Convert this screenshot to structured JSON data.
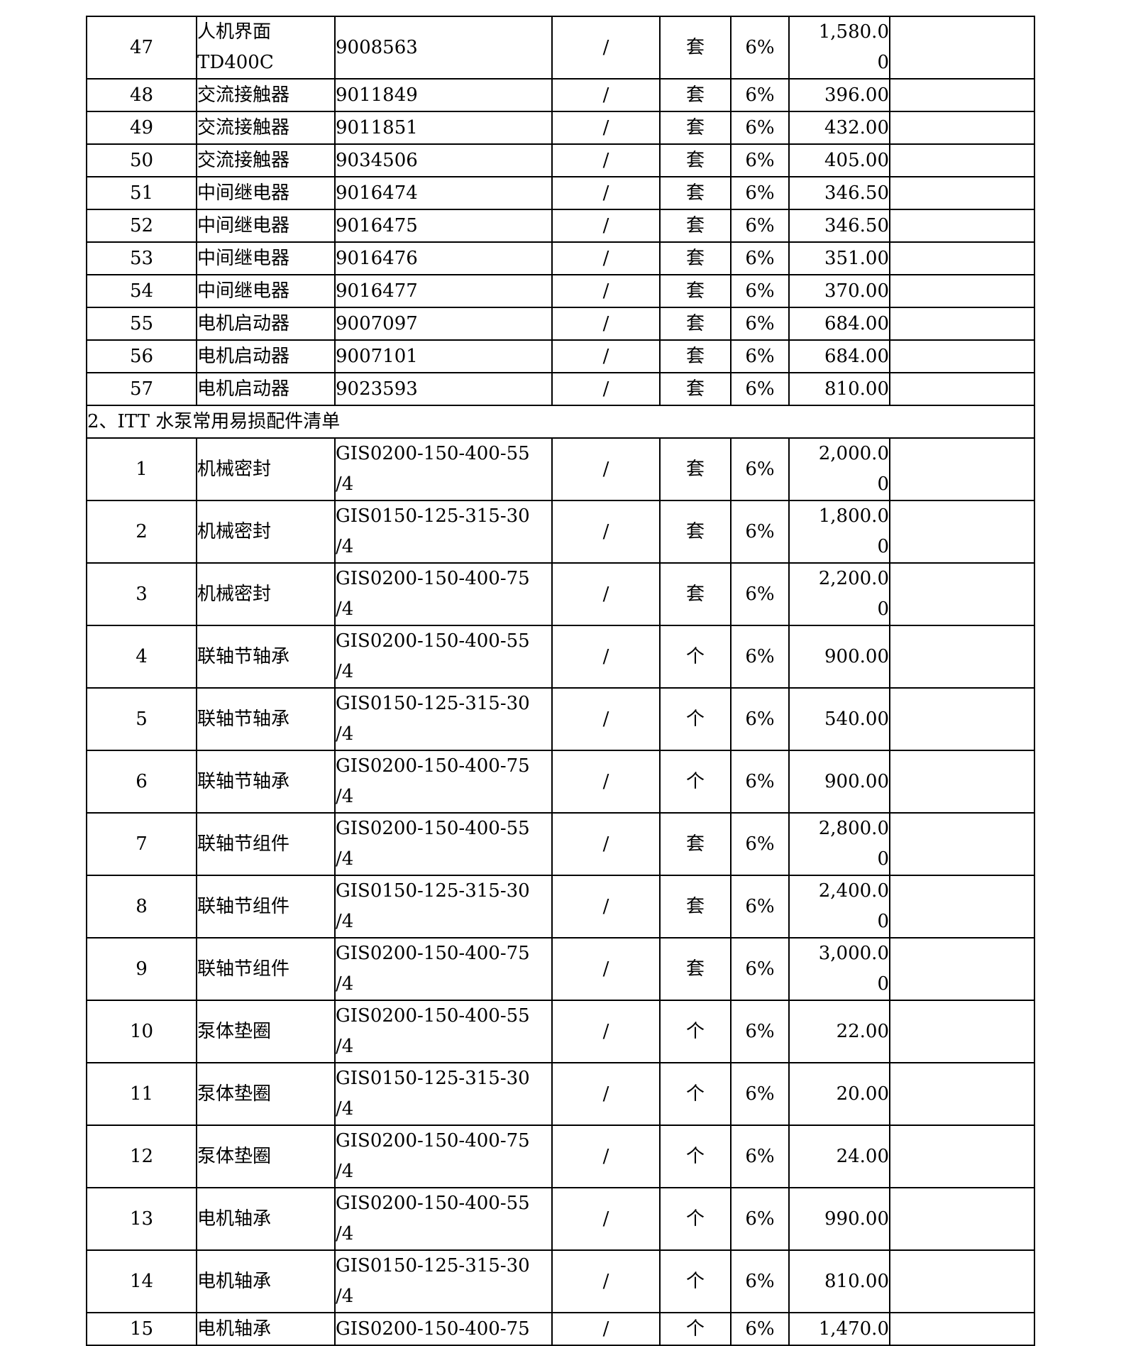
{
  "table": {
    "section2_title": "2、ITT 水泵常用易损配件清单",
    "columns": [
      "no",
      "name",
      "model",
      "qty",
      "unit",
      "tax",
      "price",
      "note"
    ],
    "rows_section1": [
      {
        "no": "47",
        "name": "人机界面\nTD400C",
        "model": "9008563",
        "qty": "/",
        "unit": "套",
        "tax": "6%",
        "price": "1,580.0\n0",
        "note": ""
      },
      {
        "no": "48",
        "name": "交流接触器",
        "model": "9011849",
        "qty": "/",
        "unit": "套",
        "tax": "6%",
        "price": "396.00",
        "note": ""
      },
      {
        "no": "49",
        "name": "交流接触器",
        "model": "9011851",
        "qty": "/",
        "unit": "套",
        "tax": "6%",
        "price": "432.00",
        "note": ""
      },
      {
        "no": "50",
        "name": "交流接触器",
        "model": "9034506",
        "qty": "/",
        "unit": "套",
        "tax": "6%",
        "price": "405.00",
        "note": ""
      },
      {
        "no": "51",
        "name": "中间继电器",
        "model": "9016474",
        "qty": "/",
        "unit": "套",
        "tax": "6%",
        "price": "346.50",
        "note": ""
      },
      {
        "no": "52",
        "name": "中间继电器",
        "model": "9016475",
        "qty": "/",
        "unit": "套",
        "tax": "6%",
        "price": "346.50",
        "note": ""
      },
      {
        "no": "53",
        "name": "中间继电器",
        "model": "9016476",
        "qty": "/",
        "unit": "套",
        "tax": "6%",
        "price": "351.00",
        "note": ""
      },
      {
        "no": "54",
        "name": "中间继电器",
        "model": "9016477",
        "qty": "/",
        "unit": "套",
        "tax": "6%",
        "price": "370.00",
        "note": ""
      },
      {
        "no": "55",
        "name": "电机启动器",
        "model": "9007097",
        "qty": "/",
        "unit": "套",
        "tax": "6%",
        "price": "684.00",
        "note": ""
      },
      {
        "no": "56",
        "name": "电机启动器",
        "model": "9007101",
        "qty": "/",
        "unit": "套",
        "tax": "6%",
        "price": "684.00",
        "note": ""
      },
      {
        "no": "57",
        "name": "电机启动器",
        "model": "9023593",
        "qty": "/",
        "unit": "套",
        "tax": "6%",
        "price": "810.00",
        "note": ""
      }
    ],
    "rows_section2": [
      {
        "no": "1",
        "name": "机械密封",
        "model": "GIS0200-150-400-55\n/4",
        "qty": "/",
        "unit": "套",
        "tax": "6%",
        "price": "2,000.0\n0",
        "note": ""
      },
      {
        "no": "2",
        "name": "机械密封",
        "model": "GIS0150-125-315-30\n/4",
        "qty": "/",
        "unit": "套",
        "tax": "6%",
        "price": "1,800.0\n0",
        "note": ""
      },
      {
        "no": "3",
        "name": "机械密封",
        "model": "GIS0200-150-400-75\n/4",
        "qty": "/",
        "unit": "套",
        "tax": "6%",
        "price": "2,200.0\n0",
        "note": ""
      },
      {
        "no": "4",
        "name": "联轴节轴承",
        "model": "GIS0200-150-400-55\n/4",
        "qty": "/",
        "unit": "个",
        "tax": "6%",
        "price": "900.00",
        "note": ""
      },
      {
        "no": "5",
        "name": "联轴节轴承",
        "model": "GIS0150-125-315-30\n/4",
        "qty": "/",
        "unit": "个",
        "tax": "6%",
        "price": "540.00",
        "note": ""
      },
      {
        "no": "6",
        "name": "联轴节轴承",
        "model": "GIS0200-150-400-75\n/4",
        "qty": "/",
        "unit": "个",
        "tax": "6%",
        "price": "900.00",
        "note": ""
      },
      {
        "no": "7",
        "name": "联轴节组件",
        "model": "GIS0200-150-400-55\n/4",
        "qty": "/",
        "unit": "套",
        "tax": "6%",
        "price": "2,800.0\n0",
        "note": ""
      },
      {
        "no": "8",
        "name": "联轴节组件",
        "model": "GIS0150-125-315-30\n/4",
        "qty": "/",
        "unit": "套",
        "tax": "6%",
        "price": "2,400.0\n0",
        "note": ""
      },
      {
        "no": "9",
        "name": "联轴节组件",
        "model": "GIS0200-150-400-75\n/4",
        "qty": "/",
        "unit": "套",
        "tax": "6%",
        "price": "3,000.0\n0",
        "note": ""
      },
      {
        "no": "10",
        "name": "泵体垫圈",
        "model": "GIS0200-150-400-55\n/4",
        "qty": "/",
        "unit": "个",
        "tax": "6%",
        "price": "22.00",
        "note": ""
      },
      {
        "no": "11",
        "name": "泵体垫圈",
        "model": "GIS0150-125-315-30\n/4",
        "qty": "/",
        "unit": "个",
        "tax": "6%",
        "price": "20.00",
        "note": ""
      },
      {
        "no": "12",
        "name": "泵体垫圈",
        "model": "GIS0200-150-400-75\n/4",
        "qty": "/",
        "unit": "个",
        "tax": "6%",
        "price": "24.00",
        "note": ""
      },
      {
        "no": "13",
        "name": "电机轴承",
        "model": "GIS0200-150-400-55\n/4",
        "qty": "/",
        "unit": "个",
        "tax": "6%",
        "price": "990.00",
        "note": ""
      },
      {
        "no": "14",
        "name": "电机轴承",
        "model": "GIS0150-125-315-30\n/4",
        "qty": "/",
        "unit": "个",
        "tax": "6%",
        "price": "810.00",
        "note": ""
      },
      {
        "no": "15",
        "name": "电机轴承",
        "model": "GIS0200-150-400-75",
        "qty": "/",
        "unit": "个",
        "tax": "6%",
        "price": "1,470.0",
        "note": ""
      }
    ]
  }
}
